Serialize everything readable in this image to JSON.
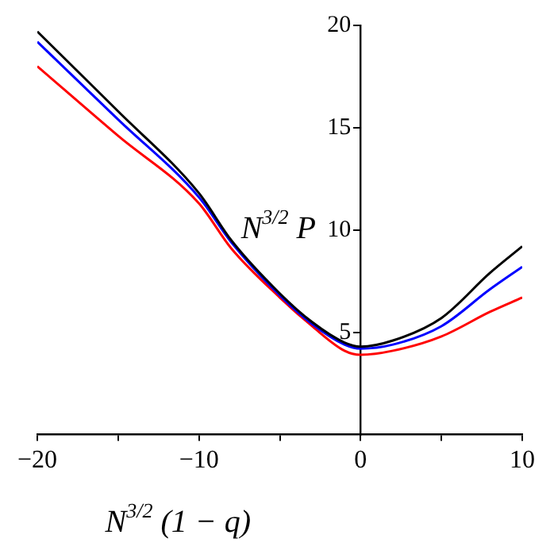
{
  "chart_data": {
    "type": "line",
    "xlabel": "N$^{3/2}$ (1 − q)",
    "ylabel": "N$^{3/2}$ P",
    "xlim": [
      -20,
      10
    ],
    "ylim": [
      0,
      20
    ],
    "xticks": [
      {
        "value": -20,
        "label": "−20"
      },
      {
        "value": -15,
        "label": null
      },
      {
        "value": -10,
        "label": "−10"
      },
      {
        "value": -5,
        "label": null
      },
      0,
      {
        "value": 5,
        "label": null
      },
      10
    ],
    "yticks": [
      5,
      10,
      15,
      20
    ],
    "grid": false,
    "legend": false,
    "marker": "none",
    "line_style": "solid",
    "x": [
      -20,
      -15,
      -10,
      -8,
      -5,
      -3,
      -1,
      0,
      2,
      5,
      8,
      10
    ],
    "series": [
      {
        "color": "#000000",
        "values": [
          19.7,
          15.8,
          11.8,
          9.5,
          6.9,
          5.5,
          4.5,
          4.3,
          4.6,
          5.7,
          7.9,
          9.2
        ]
      },
      {
        "color": "#0000ff",
        "values": [
          19.2,
          15.4,
          11.6,
          9.4,
          6.8,
          5.4,
          4.4,
          4.2,
          4.4,
          5.3,
          7.1,
          8.2
        ]
      },
      {
        "color": "#ff0000",
        "values": [
          18.0,
          14.6,
          11.3,
          9.1,
          6.7,
          5.3,
          4.1,
          3.9,
          4.1,
          4.8,
          6.0,
          6.7
        ]
      }
    ]
  }
}
